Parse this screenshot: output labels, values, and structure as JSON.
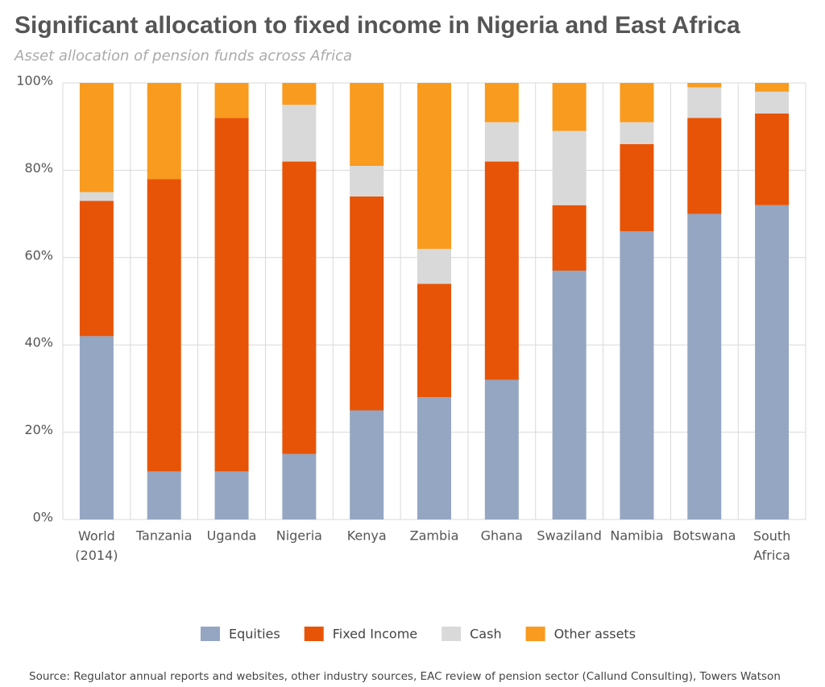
{
  "chart_data": {
    "type": "stacked-bar",
    "title": "Significant allocation to fixed income in Nigeria and East Africa",
    "subtitle": "Asset allocation of pension funds across Africa",
    "source": "Source: Regulator annual reports and websites, other industry sources, EAC review of pension sector (Callund Consulting), Towers Watson",
    "categories": [
      "World (2014)",
      "Tanzania",
      "Uganda",
      "Nigeria",
      "Kenya",
      "Zambia",
      "Ghana",
      "Swaziland",
      "Namibia",
      "Botswana",
      "South Africa"
    ],
    "series": [
      {
        "name": "Equities",
        "color": "#94a6c2",
        "values": [
          42,
          11,
          11,
          15,
          25,
          28,
          32,
          57,
          66,
          70,
          72
        ]
      },
      {
        "name": "Fixed Income",
        "color": "#e75407",
        "values": [
          31,
          67,
          81,
          67,
          49,
          26,
          50,
          15,
          20,
          22,
          21
        ]
      },
      {
        "name": "Cash",
        "color": "#d9d9d9",
        "values": [
          2,
          0,
          0,
          13,
          7,
          8,
          9,
          17,
          5,
          7,
          5
        ]
      },
      {
        "name": "Other assets",
        "color": "#f99b1e",
        "values": [
          25,
          22,
          8,
          5,
          19,
          38,
          9,
          11,
          9,
          1,
          2
        ]
      }
    ],
    "ylim": [
      0,
      100
    ],
    "yticks": [
      {
        "value": 0,
        "label": "0%"
      },
      {
        "value": 20,
        "label": "20%"
      },
      {
        "value": 40,
        "label": "40%"
      },
      {
        "value": 60,
        "label": "60%"
      },
      {
        "value": 80,
        "label": "80%"
      },
      {
        "value": 100,
        "label": "100%"
      }
    ],
    "grid": true
  }
}
